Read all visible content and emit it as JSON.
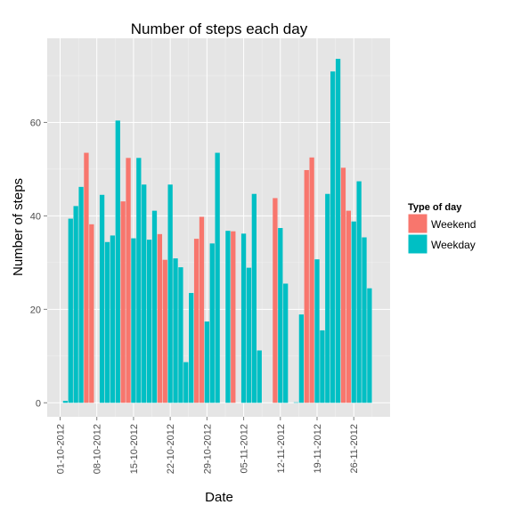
{
  "chart_data": {
    "type": "bar",
    "title": "Number of steps each day",
    "xlabel": "Date",
    "ylabel": "Number of steps",
    "ylim": [
      -3,
      78
    ],
    "yticks": [
      0,
      20,
      40,
      60
    ],
    "x_tick_labels": [
      "01-10-2012",
      "08-10-2012",
      "15-10-2012",
      "22-10-2012",
      "29-10-2012",
      "05-11-2012",
      "12-11-2012",
      "19-11-2012",
      "26-11-2012"
    ],
    "grid": true,
    "legend": {
      "title": "Type of day",
      "position": "right",
      "entries": [
        {
          "name": "Weekend",
          "color": "#F8766D"
        },
        {
          "name": "Weekday",
          "color": "#00BFC4"
        }
      ]
    },
    "series_colors": {
      "Weekend": "#F8766D",
      "Weekday": "#00BFC4"
    },
    "bars": [
      {
        "date": "01-10-2012",
        "type": "Weekday",
        "value": 0
      },
      {
        "date": "02-10-2012",
        "type": "Weekday",
        "value": 0.4
      },
      {
        "date": "03-10-2012",
        "type": "Weekday",
        "value": 39.4
      },
      {
        "date": "04-10-2012",
        "type": "Weekday",
        "value": 42.1
      },
      {
        "date": "05-10-2012",
        "type": "Weekday",
        "value": 46.2
      },
      {
        "date": "06-10-2012",
        "type": "Weekend",
        "value": 53.5
      },
      {
        "date": "07-10-2012",
        "type": "Weekend",
        "value": 38.2
      },
      {
        "date": "08-10-2012",
        "type": "Weekday",
        "value": 0
      },
      {
        "date": "09-10-2012",
        "type": "Weekday",
        "value": 44.5
      },
      {
        "date": "10-10-2012",
        "type": "Weekday",
        "value": 34.4
      },
      {
        "date": "11-10-2012",
        "type": "Weekday",
        "value": 35.8
      },
      {
        "date": "12-10-2012",
        "type": "Weekday",
        "value": 60.4
      },
      {
        "date": "13-10-2012",
        "type": "Weekend",
        "value": 43.1
      },
      {
        "date": "14-10-2012",
        "type": "Weekend",
        "value": 52.4
      },
      {
        "date": "15-10-2012",
        "type": "Weekday",
        "value": 35.2
      },
      {
        "date": "16-10-2012",
        "type": "Weekday",
        "value": 52.4
      },
      {
        "date": "17-10-2012",
        "type": "Weekday",
        "value": 46.7
      },
      {
        "date": "18-10-2012",
        "type": "Weekday",
        "value": 34.9
      },
      {
        "date": "19-10-2012",
        "type": "Weekday",
        "value": 41.1
      },
      {
        "date": "20-10-2012",
        "type": "Weekend",
        "value": 36.1
      },
      {
        "date": "21-10-2012",
        "type": "Weekend",
        "value": 30.6
      },
      {
        "date": "22-10-2012",
        "type": "Weekday",
        "value": 46.7
      },
      {
        "date": "23-10-2012",
        "type": "Weekday",
        "value": 30.9
      },
      {
        "date": "24-10-2012",
        "type": "Weekday",
        "value": 29.0
      },
      {
        "date": "25-10-2012",
        "type": "Weekday",
        "value": 8.7
      },
      {
        "date": "26-10-2012",
        "type": "Weekday",
        "value": 23.5
      },
      {
        "date": "27-10-2012",
        "type": "Weekend",
        "value": 35.1
      },
      {
        "date": "28-10-2012",
        "type": "Weekend",
        "value": 39.8
      },
      {
        "date": "29-10-2012",
        "type": "Weekday",
        "value": 17.4
      },
      {
        "date": "30-10-2012",
        "type": "Weekday",
        "value": 34.1
      },
      {
        "date": "31-10-2012",
        "type": "Weekday",
        "value": 53.5
      },
      {
        "date": "01-11-2012",
        "type": "Weekday",
        "value": 0
      },
      {
        "date": "02-11-2012",
        "type": "Weekday",
        "value": 36.8
      },
      {
        "date": "03-11-2012",
        "type": "Weekend",
        "value": 36.7
      },
      {
        "date": "04-11-2012",
        "type": "Weekend",
        "value": 0
      },
      {
        "date": "05-11-2012",
        "type": "Weekday",
        "value": 36.2
      },
      {
        "date": "06-11-2012",
        "type": "Weekday",
        "value": 28.9
      },
      {
        "date": "07-11-2012",
        "type": "Weekday",
        "value": 44.7
      },
      {
        "date": "08-11-2012",
        "type": "Weekday",
        "value": 11.2
      },
      {
        "date": "09-11-2012",
        "type": "Weekday",
        "value": 0
      },
      {
        "date": "10-11-2012",
        "type": "Weekend",
        "value": 0
      },
      {
        "date": "11-11-2012",
        "type": "Weekend",
        "value": 43.8
      },
      {
        "date": "12-11-2012",
        "type": "Weekday",
        "value": 37.4
      },
      {
        "date": "13-11-2012",
        "type": "Weekday",
        "value": 25.5
      },
      {
        "date": "14-11-2012",
        "type": "Weekday",
        "value": 0
      },
      {
        "date": "15-11-2012",
        "type": "Weekday",
        "value": 0.1
      },
      {
        "date": "16-11-2012",
        "type": "Weekday",
        "value": 18.9
      },
      {
        "date": "17-11-2012",
        "type": "Weekend",
        "value": 49.8
      },
      {
        "date": "18-11-2012",
        "type": "Weekend",
        "value": 52.5
      },
      {
        "date": "19-11-2012",
        "type": "Weekday",
        "value": 30.7
      },
      {
        "date": "20-11-2012",
        "type": "Weekday",
        "value": 15.5
      },
      {
        "date": "21-11-2012",
        "type": "Weekday",
        "value": 44.7
      },
      {
        "date": "22-11-2012",
        "type": "Weekday",
        "value": 70.9
      },
      {
        "date": "23-11-2012",
        "type": "Weekday",
        "value": 73.6
      },
      {
        "date": "24-11-2012",
        "type": "Weekend",
        "value": 50.3
      },
      {
        "date": "25-11-2012",
        "type": "Weekend",
        "value": 41.1
      },
      {
        "date": "26-11-2012",
        "type": "Weekday",
        "value": 38.8
      },
      {
        "date": "27-11-2012",
        "type": "Weekday",
        "value": 47.4
      },
      {
        "date": "28-11-2012",
        "type": "Weekday",
        "value": 35.4
      },
      {
        "date": "29-11-2012",
        "type": "Weekday",
        "value": 24.5
      }
    ]
  }
}
